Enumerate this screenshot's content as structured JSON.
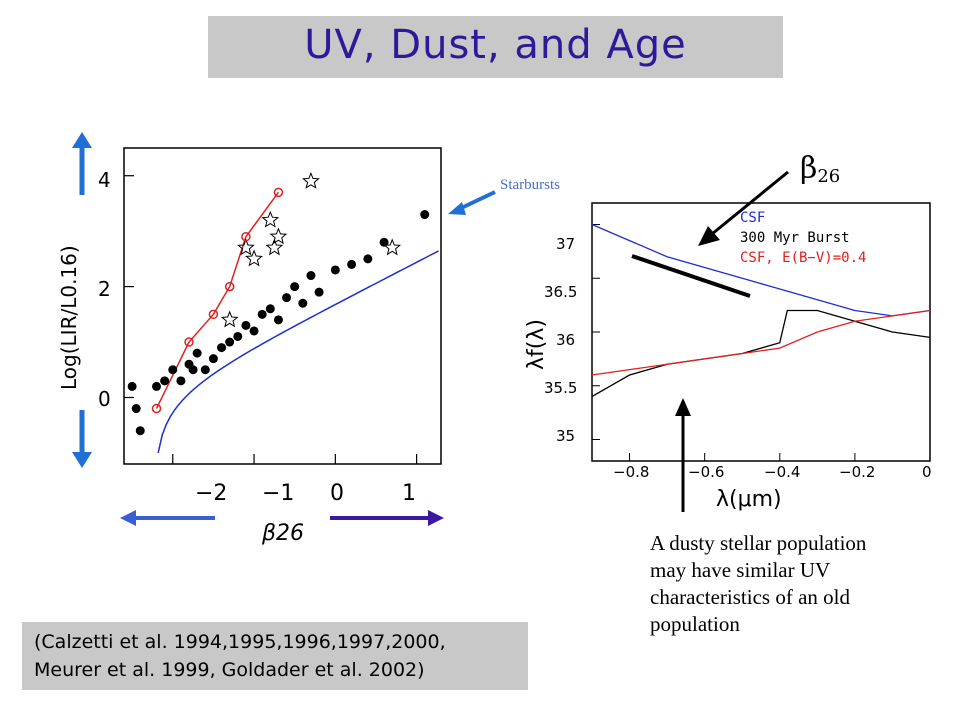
{
  "title": "UV, Dust, and Age",
  "citation": [
    "(Calzetti et al. 1994,1995,1996,1997,2000,",
    "Meurer et al. 1999, Goldader et al. 2002)"
  ],
  "annotations": {
    "starbursts": "Starbursts",
    "beta_label": "β",
    "beta_sub": "26",
    "note": "A dusty stellar population may have similar UV characteristics of an old population"
  },
  "colors": {
    "title": "#2c1a9a",
    "arrow_blue": "#1f6fd6",
    "arrow_purple": "#3a1aa0",
    "red": "#e02020",
    "blue_line": "#1c2fd0"
  },
  "chart_data": [
    {
      "type": "scatter",
      "title": "",
      "xlabel": "β26",
      "ylabel": "Log(LIR/L0.16)",
      "xlim": [
        -2.6,
        1.3
      ],
      "ylim": [
        -1.2,
        4.5
      ],
      "xticks": [
        "−2",
        "−1",
        "0",
        "1"
      ],
      "yticks": [
        "0",
        "2",
        "4"
      ],
      "series": [
        {
          "marker": "filled-circle",
          "points": [
            [
              -2.5,
              0.2
            ],
            [
              -2.45,
              -0.2
            ],
            [
              -2.4,
              -0.6
            ],
            [
              -2.2,
              0.2
            ],
            [
              -2.1,
              0.3
            ],
            [
              -2.0,
              0.5
            ],
            [
              -1.9,
              0.3
            ],
            [
              -1.8,
              0.6
            ],
            [
              -1.75,
              0.5
            ],
            [
              -1.7,
              0.8
            ],
            [
              -1.6,
              0.5
            ],
            [
              -1.5,
              0.7
            ],
            [
              -1.4,
              0.9
            ],
            [
              -1.3,
              1.0
            ],
            [
              -1.2,
              1.1
            ],
            [
              -1.1,
              1.3
            ],
            [
              -1.0,
              1.2
            ],
            [
              -0.9,
              1.5
            ],
            [
              -0.8,
              1.6
            ],
            [
              -0.7,
              1.4
            ],
            [
              -0.6,
              1.8
            ],
            [
              -0.5,
              2.0
            ],
            [
              -0.4,
              1.7
            ],
            [
              -0.3,
              2.2
            ],
            [
              -0.2,
              1.9
            ],
            [
              0.0,
              2.3
            ],
            [
              0.2,
              2.4
            ],
            [
              0.4,
              2.5
            ],
            [
              0.6,
              2.8
            ],
            [
              1.1,
              3.3
            ]
          ]
        },
        {
          "marker": "open-star",
          "points": [
            [
              -1.3,
              1.4
            ],
            [
              -1.1,
              2.7
            ],
            [
              -1.0,
              2.5
            ],
            [
              -0.8,
              3.2
            ],
            [
              -0.7,
              2.9
            ],
            [
              -0.75,
              2.7
            ],
            [
              -0.3,
              3.9
            ],
            [
              0.7,
              2.7
            ]
          ]
        },
        {
          "marker": "open-circle-red",
          "points": [
            [
              -2.2,
              -0.2
            ],
            [
              -1.8,
              1.0
            ],
            [
              -1.5,
              1.5
            ],
            [
              -1.3,
              2.0
            ],
            [
              -1.1,
              2.9
            ],
            [
              -0.7,
              3.7
            ]
          ]
        }
      ]
    },
    {
      "type": "line",
      "title": "",
      "xlabel": "λ(μm)",
      "ylabel": "λf(λ)",
      "xlim": [
        -0.9,
        0.0
      ],
      "ylim": [
        34.8,
        37.2
      ],
      "xticks": [
        "−0.8",
        "−0.6",
        "−0.4",
        "−0.2",
        "0"
      ],
      "yticks": [
        "35",
        "35.5",
        "36",
        "36.5",
        "37"
      ],
      "legend": [
        "CSF",
        "300 Myr Burst",
        "CSF, E(B−V)=0.4"
      ],
      "legend_position": "top-right",
      "series": [
        {
          "name": "CSF",
          "x": [
            -0.9,
            -0.8,
            -0.7,
            -0.6,
            -0.5,
            -0.4,
            -0.3,
            -0.2,
            -0.1,
            0.0
          ],
          "y": [
            37.0,
            36.85,
            36.7,
            36.6,
            36.5,
            36.4,
            36.3,
            36.2,
            36.15,
            36.2
          ]
        },
        {
          "name": "300 Myr Burst",
          "x": [
            -0.9,
            -0.8,
            -0.7,
            -0.6,
            -0.5,
            -0.4,
            -0.38,
            -0.3,
            -0.2,
            -0.1,
            0.0
          ],
          "y": [
            35.4,
            35.6,
            35.7,
            35.75,
            35.8,
            35.9,
            36.2,
            36.2,
            36.1,
            36.0,
            35.95
          ]
        },
        {
          "name": "CSF, E(B−V)=0.4",
          "x": [
            -0.9,
            -0.8,
            -0.7,
            -0.6,
            -0.5,
            -0.4,
            -0.3,
            -0.2,
            -0.1,
            0.0
          ],
          "y": [
            35.6,
            35.65,
            35.7,
            35.75,
            35.8,
            35.85,
            36.0,
            36.1,
            36.15,
            36.2
          ]
        }
      ]
    }
  ]
}
